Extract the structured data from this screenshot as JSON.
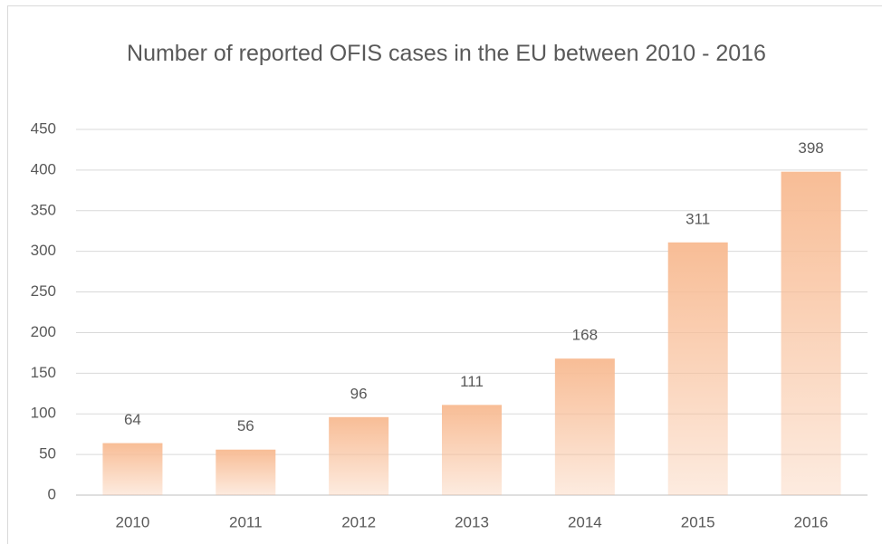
{
  "chart_data": {
    "type": "bar",
    "title": "Number of reported OFIS cases in the EU between 2010 - 2016",
    "categories": [
      "2010",
      "2011",
      "2012",
      "2013",
      "2014",
      "2015",
      "2016"
    ],
    "values": [
      64,
      56,
      96,
      111,
      168,
      311,
      398
    ],
    "color": "#f8bd96",
    "ylim": [
      0,
      450
    ],
    "yticks": [
      0,
      50,
      100,
      150,
      200,
      250,
      300,
      350,
      400,
      450
    ],
    "grid": true
  }
}
